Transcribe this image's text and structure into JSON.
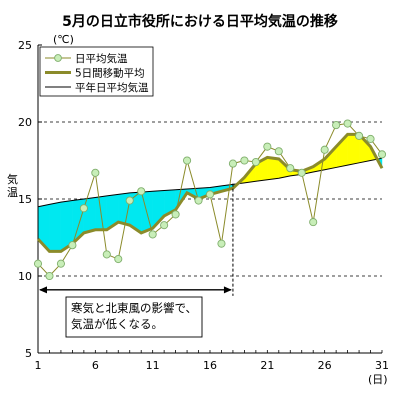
{
  "chart_data": {
    "type": "line",
    "title": "5月の日立市役所における日平均気温の推移",
    "ylabel": "気温",
    "yunit": "(℃)",
    "xunit": "(日)",
    "ylim": [
      5,
      25
    ],
    "yticks": [
      5,
      10,
      15,
      20,
      25
    ],
    "xlim": [
      1,
      31
    ],
    "xticks": [
      1,
      6,
      11,
      16,
      21,
      26,
      31
    ],
    "grid": "horizontal dashed at 10, 15, 20",
    "legend_position": "top-left",
    "x": [
      1,
      2,
      3,
      4,
      5,
      6,
      7,
      8,
      9,
      10,
      11,
      12,
      13,
      14,
      15,
      16,
      17,
      18,
      19,
      20,
      21,
      22,
      23,
      24,
      25,
      26,
      27,
      28,
      29,
      30,
      31
    ],
    "series": [
      {
        "name": "日平均気温",
        "color": "#8B8B2A",
        "marker_fill": "#C8EEB8",
        "values": [
          10.8,
          10.0,
          10.8,
          12.0,
          14.4,
          16.7,
          11.4,
          11.1,
          14.9,
          15.5,
          12.7,
          13.3,
          14.0,
          17.5,
          14.9,
          15.3,
          12.1,
          17.3,
          17.5,
          17.4,
          18.4,
          18.1,
          17.0,
          16.7,
          13.5,
          18.2,
          19.8,
          19.9,
          19.1,
          18.9,
          17.9
        ]
      },
      {
        "name": "5日間移動平均",
        "color": "#8B8B2A",
        "values": [
          12.4,
          11.6,
          11.6,
          12.1,
          12.8,
          13.0,
          13.0,
          13.5,
          13.3,
          12.8,
          13.1,
          13.9,
          14.3,
          15.4,
          15.0,
          15.3,
          15.5,
          15.7,
          16.4,
          17.3,
          17.7,
          17.6,
          16.9,
          16.8,
          17.1,
          17.6,
          18.4,
          19.2,
          19.2,
          18.4,
          17.0
        ]
      },
      {
        "name": "平年日平均気温",
        "color": "#000000",
        "values": [
          14.5,
          14.65,
          14.8,
          14.9,
          15.0,
          15.1,
          15.2,
          15.3,
          15.4,
          15.45,
          15.5,
          15.55,
          15.6,
          15.65,
          15.7,
          15.75,
          15.85,
          15.95,
          16.05,
          16.15,
          16.25,
          16.35,
          16.5,
          16.6,
          16.75,
          16.9,
          17.05,
          17.2,
          17.35,
          17.5,
          17.65
        ]
      }
    ],
    "fill_below_normal_color": "#00E8F0",
    "fill_above_normal_color": "#FFFF00",
    "annotation": {
      "text_lines": [
        "寒気と北東風の影響で、",
        "気温が低くなる。"
      ],
      "range_start_day": 1,
      "range_end_day": 18,
      "divider_day": 18
    }
  }
}
